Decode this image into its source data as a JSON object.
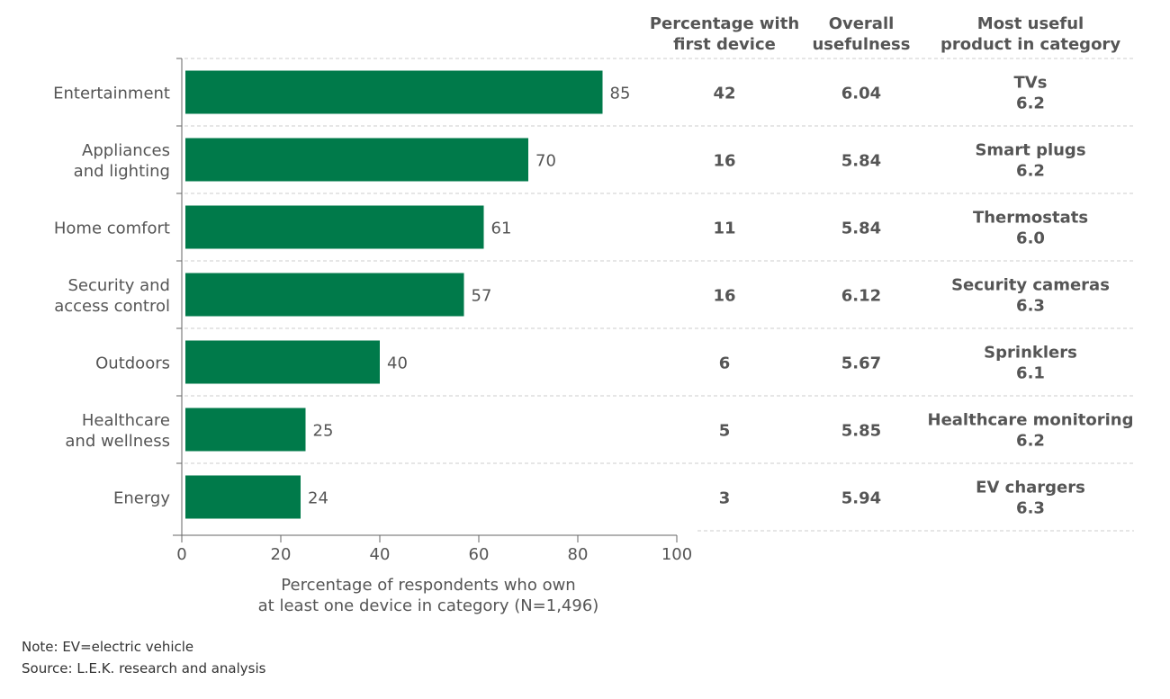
{
  "chart_data": {
    "type": "bar",
    "orientation": "horizontal",
    "categories": [
      "Entertainment",
      "Appliances and lighting",
      "Home comfort",
      "Security and access control",
      "Outdoors",
      "Healthcare and wellness",
      "Energy"
    ],
    "category_lines": [
      [
        "Entertainment"
      ],
      [
        "Appliances",
        "and lighting"
      ],
      [
        "Home comfort"
      ],
      [
        "Security and",
        "access control"
      ],
      [
        "Outdoors"
      ],
      [
        "Healthcare",
        "and wellness"
      ],
      [
        "Energy"
      ]
    ],
    "values": [
      85,
      70,
      61,
      57,
      40,
      25,
      24
    ],
    "xlabel_lines": [
      "Percentage of respondents who own",
      "at least one device in category (N=1,496)"
    ],
    "xlim": [
      0,
      100
    ],
    "xticks": [
      "0",
      "20",
      "40",
      "60",
      "80",
      "100"
    ],
    "bar_color": "#007a4a",
    "table": {
      "headers": [
        [
          "Percentage with",
          "first device"
        ],
        [
          "Overall",
          "usefulness"
        ],
        [
          "Most useful",
          "product in category"
        ]
      ],
      "rows": [
        [
          "42",
          "6.04",
          "TVs",
          "6.2"
        ],
        [
          "16",
          "5.84",
          "Smart plugs",
          "6.2"
        ],
        [
          "11",
          "5.84",
          "Thermostats",
          "6.0"
        ],
        [
          "16",
          "6.12",
          "Security cameras",
          "6.3"
        ],
        [
          "6",
          "5.67",
          "Sprinklers",
          "6.1"
        ],
        [
          "5",
          "5.85",
          "Healthcare monitoring",
          "6.2"
        ],
        [
          "3",
          "5.94",
          "EV chargers",
          "6.3"
        ]
      ]
    }
  },
  "notes": {
    "note": "Note: EV=electric vehicle",
    "source": "Source: L.E.K. research and analysis"
  }
}
